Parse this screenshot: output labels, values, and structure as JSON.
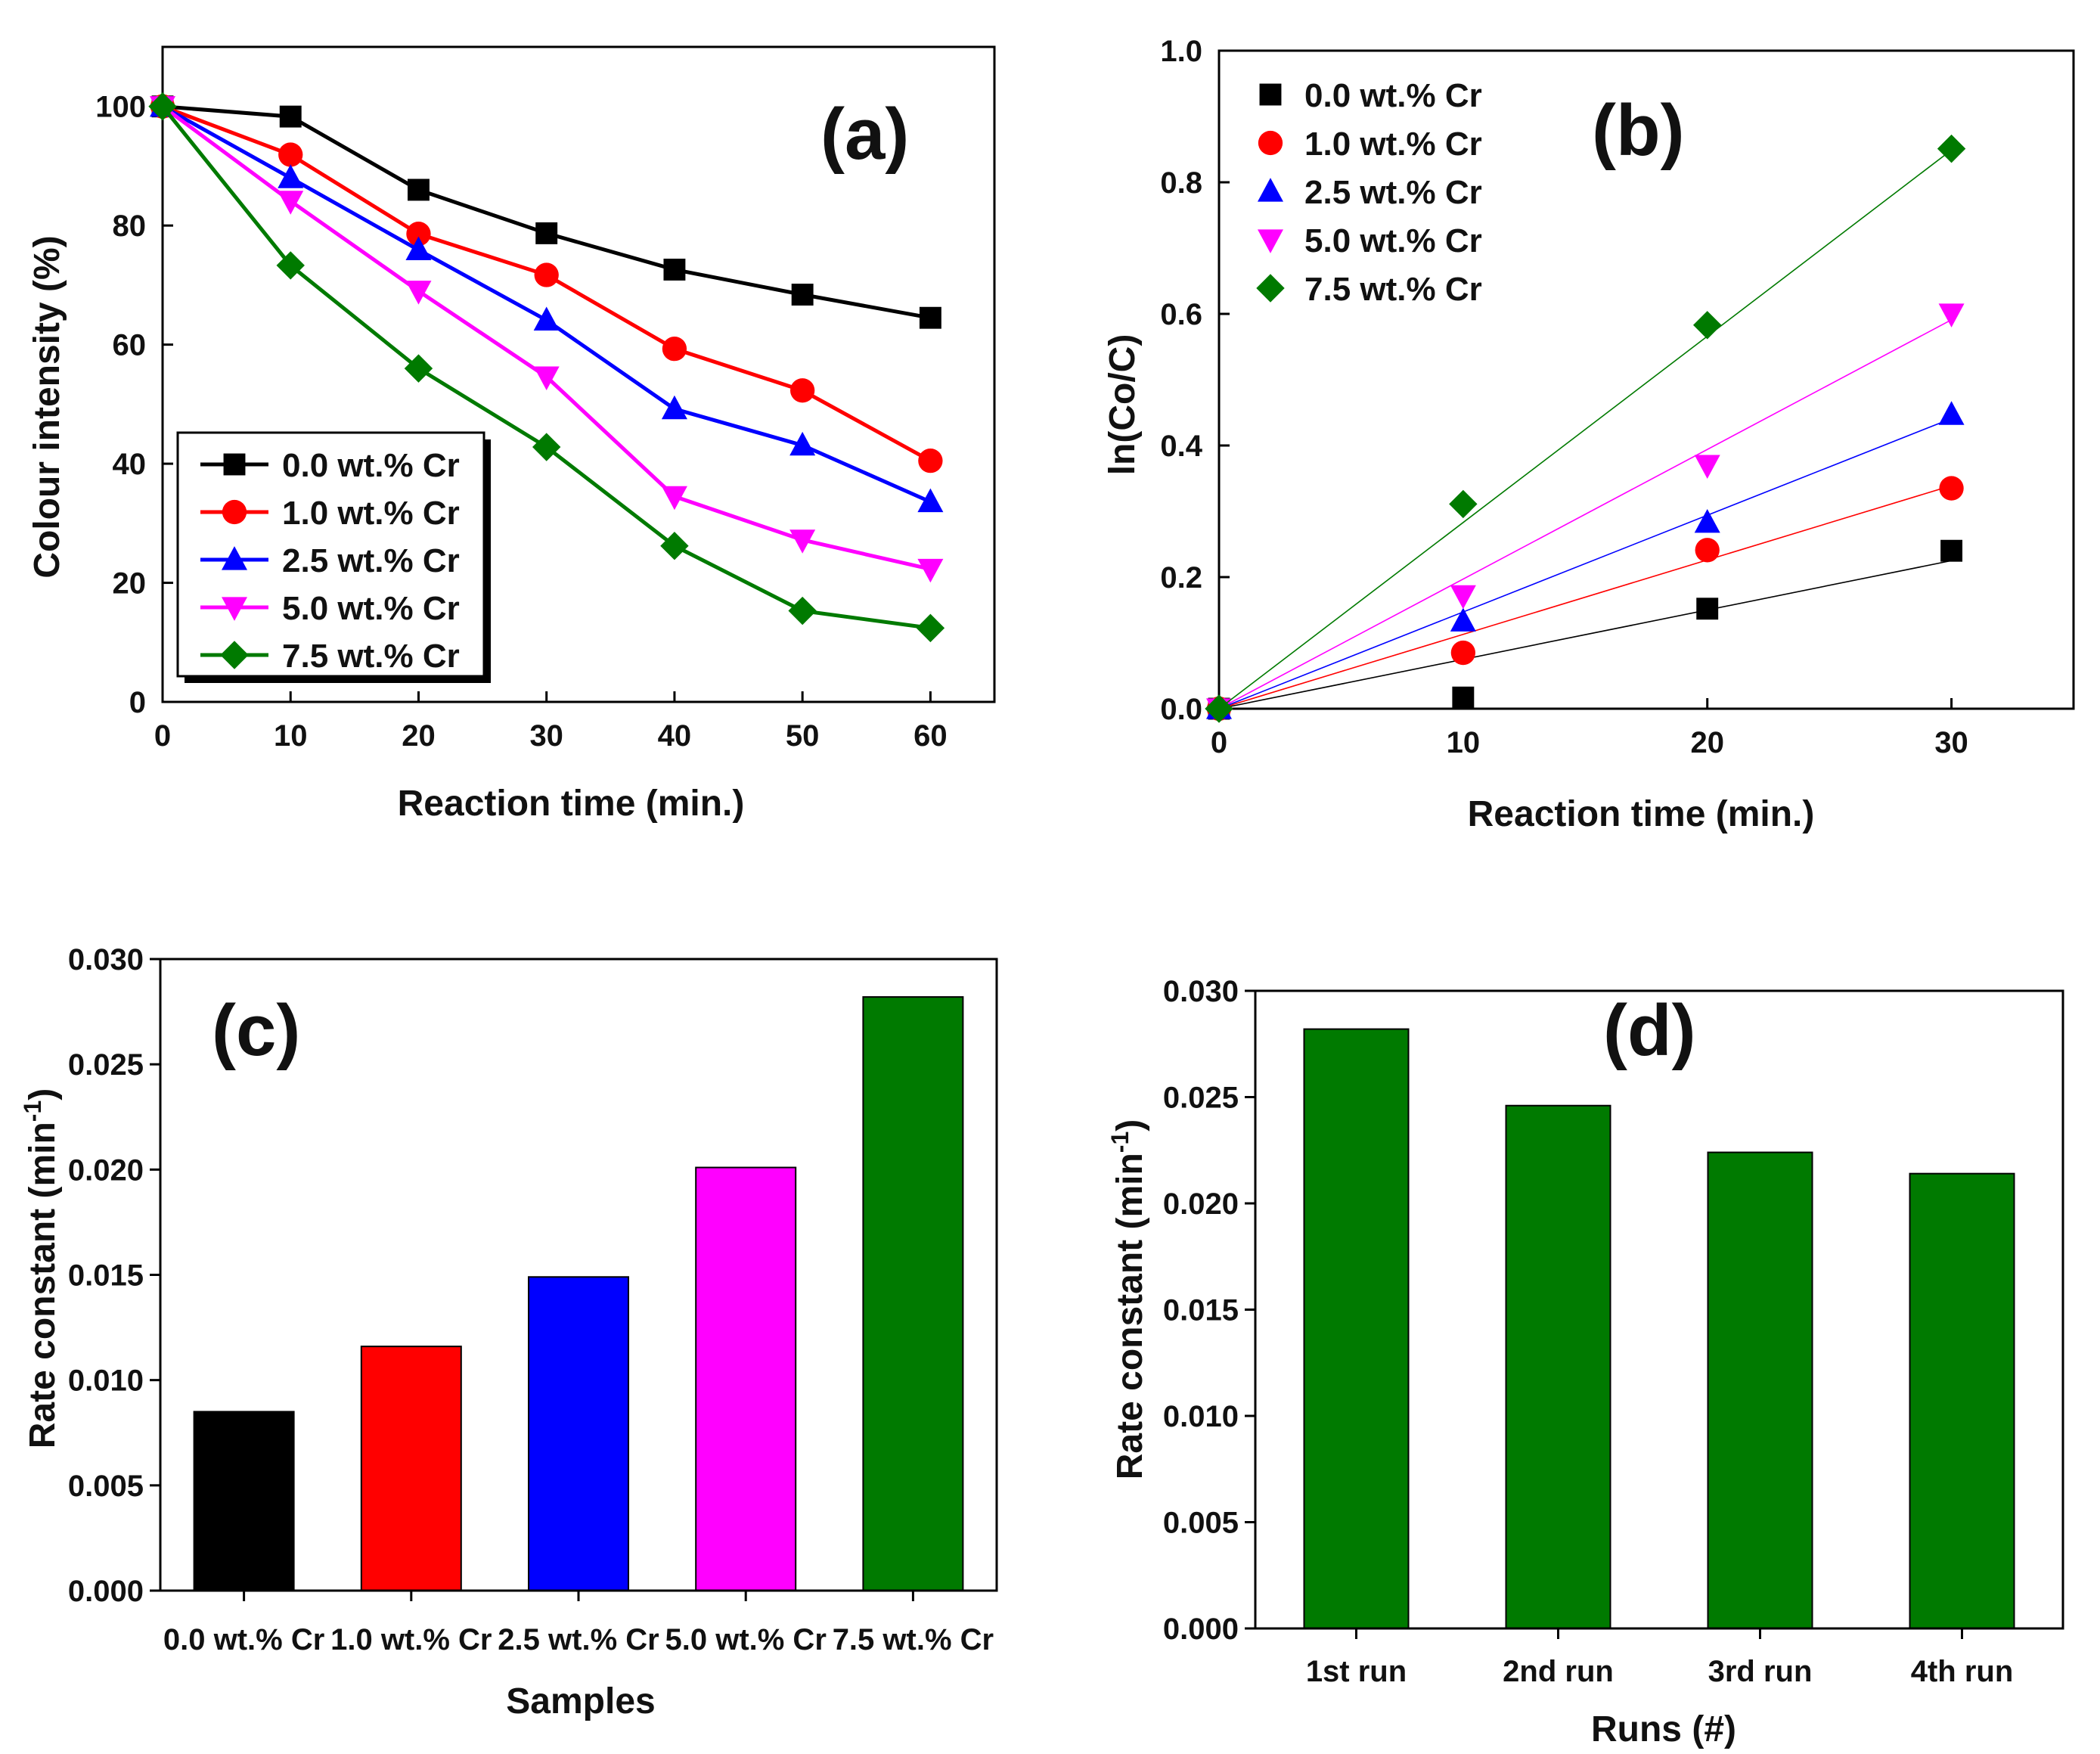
{
  "figure": {
    "colors": {
      "s0": "#000000",
      "s1": "#ff0000",
      "s2": "#0000ff",
      "s3": "#ff00ff",
      "s4": "#007a00",
      "d_bar": "#007a00"
    }
  },
  "chart_data": [
    {
      "panel": "(a)",
      "type": "line",
      "xlabel": "Reaction time (min.)",
      "ylabel": "Colour intensity (%)",
      "xlim": [
        0,
        65
      ],
      "ylim": [
        0,
        110
      ],
      "xticks": [
        0,
        10,
        20,
        30,
        40,
        50,
        60
      ],
      "yticks": [
        0,
        20,
        40,
        60,
        80,
        100
      ],
      "x": [
        0,
        10,
        20,
        30,
        40,
        50,
        60
      ],
      "legend_position": "bottom-left",
      "series": [
        {
          "name": "0.0 wt.% Cr",
          "marker": "square",
          "color": "#000000",
          "values": [
            100,
            98.3,
            86,
            78.7,
            72.6,
            68.4,
            64.5
          ]
        },
        {
          "name": "1.0 wt.% Cr",
          "marker": "circle",
          "color": "#ff0000",
          "values": [
            100,
            91.9,
            78.6,
            71.7,
            59.3,
            52.3,
            40.5
          ]
        },
        {
          "name": "2.5 wt.% Cr",
          "marker": "triangle-up",
          "color": "#0000ff",
          "values": [
            100,
            88,
            75.9,
            64.1,
            49.2,
            43.1,
            33.6
          ]
        },
        {
          "name": "5.0 wt.% Cr",
          "marker": "triangle-down",
          "color": "#ff00ff",
          "values": [
            100,
            84.1,
            69,
            54.6,
            34.5,
            27.2,
            22.3
          ]
        },
        {
          "name": "7.5 wt.% Cr",
          "marker": "diamond",
          "color": "#007a00",
          "values": [
            100,
            73.3,
            56,
            42.8,
            26.2,
            15.3,
            12.4
          ]
        }
      ]
    },
    {
      "panel": "(b)",
      "type": "scatter",
      "xlabel": "Reaction time (min.)",
      "ylabel": "ln(Co/C)",
      "xlim": [
        0,
        35
      ],
      "ylim": [
        0,
        1.0
      ],
      "xticks": [
        0,
        10,
        20,
        30
      ],
      "yticks": [
        0.0,
        0.2,
        0.4,
        0.6,
        0.8,
        1.0
      ],
      "x": [
        0,
        10,
        20,
        30
      ],
      "legend_position": "top-left",
      "fit": "linear",
      "series": [
        {
          "name": "0.0 wt.% Cr",
          "marker": "square",
          "color": "#000000",
          "values": [
            0,
            0.017,
            0.152,
            0.24
          ],
          "slope": 0.0075
        },
        {
          "name": "1.0 wt.% Cr",
          "marker": "circle",
          "color": "#ff0000",
          "values": [
            0,
            0.085,
            0.241,
            0.335
          ],
          "slope": 0.0113
        },
        {
          "name": "2.5 wt.% Cr",
          "marker": "triangle-up",
          "color": "#0000ff",
          "values": [
            0,
            0.133,
            0.283,
            0.447
          ],
          "slope": 0.0147
        },
        {
          "name": "5.0 wt.% Cr",
          "marker": "triangle-down",
          "color": "#ff00ff",
          "values": [
            0,
            0.172,
            0.37,
            0.6
          ],
          "slope": 0.0197
        },
        {
          "name": "7.5 wt.% Cr",
          "marker": "diamond",
          "color": "#007a00",
          "values": [
            0,
            0.311,
            0.583,
            0.851
          ],
          "slope": 0.0283
        }
      ]
    },
    {
      "panel": "(c)",
      "type": "bar",
      "xlabel": "Samples",
      "ylabel": "Rate constant (min",
      "ylabel_sup": "-1",
      "ylabel_close": ")",
      "ylim": [
        0,
        0.03
      ],
      "yticks": [
        "0.000",
        "0.005",
        "0.010",
        "0.015",
        "0.020",
        "0.025",
        "0.030"
      ],
      "categories": [
        "0.0 wt.% Cr",
        "1.0 wt.% Cr",
        "2.5 wt.% Cr",
        "5.0 wt.% Cr",
        "7.5 wt.% Cr"
      ],
      "values": [
        0.0085,
        0.0116,
        0.0149,
        0.0201,
        0.0282
      ],
      "colors": [
        "#000000",
        "#ff0000",
        "#0000ff",
        "#ff00ff",
        "#007a00"
      ]
    },
    {
      "panel": "(d)",
      "type": "bar",
      "xlabel": "Runs (#)",
      "ylabel": "Rate constant (min",
      "ylabel_sup": "-1",
      "ylabel_close": ")",
      "ylim": [
        0,
        0.03
      ],
      "yticks": [
        "0.000",
        "0.005",
        "0.010",
        "0.015",
        "0.020",
        "0.025",
        "0.030"
      ],
      "categories": [
        "1st run",
        "2nd run",
        "3rd run",
        "4th run"
      ],
      "values": [
        0.0282,
        0.0246,
        0.0224,
        0.0214
      ],
      "colors": [
        "#007a00",
        "#007a00",
        "#007a00",
        "#007a00"
      ]
    }
  ]
}
